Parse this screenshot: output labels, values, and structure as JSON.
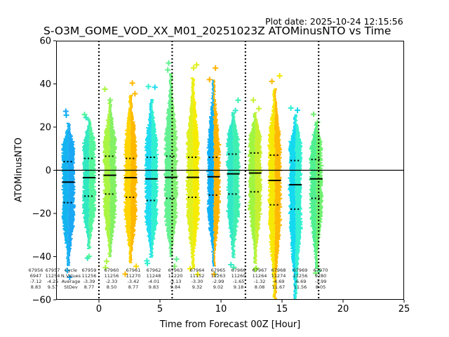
{
  "plot_date": "Plot date: 2025-10-24 12:15:56",
  "chart_data": {
    "type": "scatter",
    "title": "S-O3M_GOME_VOD_XX_M01_20251023Z ATOMinusNTO vs Time",
    "xlabel": "Time from Forecast 00Z [Hour]",
    "ylabel": "ATOMinusNTO",
    "xlim": [
      -3.5,
      25
    ],
    "ylim": [
      -60,
      60
    ],
    "xticks": [
      0,
      5,
      10,
      15,
      20,
      25
    ],
    "yticks": [
      -60,
      -40,
      -20,
      0,
      20,
      40,
      60
    ],
    "vlines": [
      0,
      6,
      12,
      18
    ],
    "hline": 0,
    "grid": false,
    "stats_labels": [
      "Cycle",
      "N.Values",
      "Average",
      "StDev"
    ],
    "series": [
      {
        "cycle": "67956",
        "n": "6947",
        "avg": "-7.12",
        "std": "8.83",
        "x": -2.5,
        "mean": -5.5,
        "p_hi": 4.0,
        "p_lo": -15.0,
        "top": 22,
        "bottom": -44,
        "color": "#15b4f0",
        "color2": "#1aa8f5"
      },
      {
        "cycle": "67957",
        "n": "11254",
        "avg": "-4.25",
        "std": "9.57",
        "x": -0.8,
        "mean": -3.4,
        "p_hi": 5.5,
        "p_lo": -12.0,
        "top": 24,
        "bottom": -36,
        "color": "#2ee8c0",
        "color2": "#50f59a"
      },
      {
        "cycle": "67959",
        "n": "11256",
        "avg": "-3.39",
        "std": "8.77",
        "x": 0.9,
        "mean": -2.3,
        "p_hi": 6.5,
        "p_lo": -11.0,
        "top": 32,
        "bottom": -40,
        "color": "#a8f540",
        "color2": "#80f060"
      },
      {
        "cycle": "67960",
        "n": "11256",
        "avg": "-2.33",
        "std": "8.50",
        "x": 2.6,
        "mean": -3.4,
        "p_hi": 5.5,
        "p_lo": -12.5,
        "top": 35,
        "bottom": -43,
        "color": "#ffd400",
        "color2": "#ffb800"
      },
      {
        "cycle": "67961",
        "n": "11270",
        "avg": "-3.42",
        "std": "8.77",
        "x": 4.3,
        "mean": -4.0,
        "p_hi": 6.0,
        "p_lo": -14.0,
        "top": 33,
        "bottom": -40,
        "color": "#20dcf0",
        "color2": "#30f0d0"
      },
      {
        "cycle": "67962",
        "n": "11248",
        "avg": "-4.01",
        "std": "9.83",
        "x": 5.9,
        "mean": -3.3,
        "p_hi": 6.5,
        "p_lo": -13.0,
        "top": 45,
        "bottom": -40,
        "color": "#60f090",
        "color2": "#80f070"
      },
      {
        "cycle": "67963",
        "n": "11220",
        "avg": "-3.13",
        "std": "9.84",
        "x": 7.7,
        "mean": -3.3,
        "p_hi": 6.0,
        "p_lo": -12.5,
        "top": 43,
        "bottom": -45,
        "color": "#e0f020",
        "color2": "#f5ec00"
      },
      {
        "cycle": "67964",
        "n": "11152",
        "avg": "-3.30",
        "std": "9.32",
        "x": 9.4,
        "mean": -3.0,
        "p_hi": 6.0,
        "p_lo": -11.5,
        "top": 42,
        "bottom": -44,
        "color": "#10b0f8",
        "color2": "#ffb400"
      },
      {
        "cycle": "67965",
        "n": "11263",
        "avg": "-2.99",
        "std": "9.02",
        "x": 11.0,
        "mean": -1.65,
        "p_hi": 7.5,
        "p_lo": -11.0,
        "top": 27,
        "bottom": -40,
        "color": "#30e8c8",
        "color2": "#40f0b0"
      },
      {
        "cycle": "67966",
        "n": "11260",
        "avg": "-1.65",
        "std": "9.18",
        "x": 12.8,
        "mean": -1.3,
        "p_hi": 8.0,
        "p_lo": -10.0,
        "top": 27,
        "bottom": -43,
        "color": "#a0f540",
        "color2": "#c8f030"
      },
      {
        "cycle": "67967",
        "n": "11264",
        "avg": "-1.32",
        "std": "8.08",
        "x": 14.4,
        "mean": -4.7,
        "p_hi": 7.0,
        "p_lo": -16.0,
        "top": 38,
        "bottom": -60,
        "color": "#f5e800",
        "color2": "#ffb800"
      },
      {
        "cycle": "67968",
        "n": "11274",
        "avg": "-4.69",
        "std": "11.67",
        "x": 16.1,
        "mean": -6.7,
        "p_hi": 4.5,
        "p_lo": -18.0,
        "top": 26,
        "bottom": -60,
        "color": "#10d8f0",
        "color2": "#30f0d0"
      },
      {
        "cycle": "67969",
        "n": "11256",
        "avg": "-6.69",
        "std": "11.56",
        "x": 17.8,
        "mean": -4.0,
        "p_hi": 5.0,
        "p_lo": -13.0,
        "top": 22,
        "bottom": -45,
        "color": "#50f090",
        "color2": "#70f070"
      },
      {
        "cycle": "67970",
        "n": "9280",
        "avg": "-3.99",
        "std": "8.05",
        "x": null,
        "mean": null,
        "p_hi": null,
        "p_lo": null,
        "top": null,
        "bottom": null,
        "color": "#60f080",
        "color2": "#60f080"
      }
    ]
  }
}
